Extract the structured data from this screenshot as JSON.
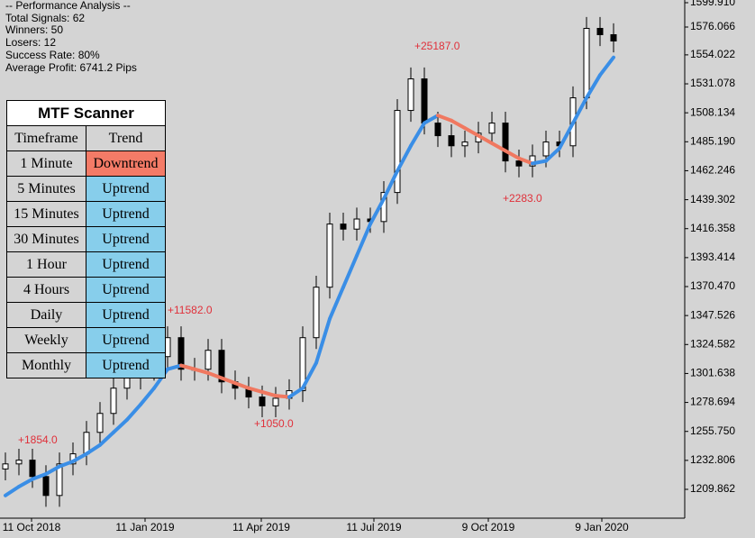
{
  "performance": {
    "lines": [
      "-- Performance Analysis --",
      "Total Signals: 62",
      "Winners: 50",
      "Losers: 12",
      "Success Rate: 80%",
      "Average Profit: 6741.2 Pips"
    ]
  },
  "scanner": {
    "title": "MTF Scanner",
    "header": [
      "Timeframe",
      "Trend"
    ],
    "rows": [
      [
        "1 Minute",
        "Downtrend"
      ],
      [
        "5 Minutes",
        "Uptrend"
      ],
      [
        "15 Minutes",
        "Uptrend"
      ],
      [
        "30 Minutes",
        "Uptrend"
      ],
      [
        "1 Hour",
        "Uptrend"
      ],
      [
        "4 Hours",
        "Uptrend"
      ],
      [
        "Daily",
        "Uptrend"
      ],
      [
        "Weekly",
        "Uptrend"
      ],
      [
        "Monthly",
        "Uptrend"
      ]
    ],
    "trend_colors": {
      "Downtrend": "#f47b67",
      "Uptrend": "#87ceeb"
    }
  },
  "price_axis": [
    "1599.910",
    "1576.066",
    "1554.022",
    "1531.078",
    "1508.134",
    "1485.190",
    "1462.246",
    "1439.302",
    "1416.358",
    "1393.414",
    "1370.470",
    "1347.526",
    "1324.582",
    "1301.638",
    "1278.694",
    "1255.750",
    "1232.806",
    "1209.862"
  ],
  "date_axis": [
    "11 Oct 2018",
    "11 Jan 2019",
    "11 Apr 2019",
    "11 Jul 2019",
    "9 Oct 2019",
    "9 Jan 2020"
  ],
  "annotations": [
    "+1854.0",
    "+11582.0",
    "+1050.0",
    "+25187.0",
    "+2283.0"
  ],
  "price_series": {
    "values": [
      1230,
      1233,
      1220,
      1205,
      1230,
      1238,
      1255,
      1270,
      1290,
      1298,
      1305,
      1315,
      1330,
      1305,
      1305,
      1320,
      1295,
      1290,
      1283,
      1276,
      1282,
      1288,
      1330,
      1370,
      1420,
      1416,
      1424,
      1422,
      1445,
      1510,
      1535,
      1500,
      1490,
      1482,
      1485,
      1492,
      1500,
      1470,
      1466,
      1474,
      1485,
      1482,
      1520,
      1575,
      1570,
      1565
    ]
  },
  "ma": {
    "values": [
      1205,
      1212,
      1218,
      1222,
      1228,
      1232,
      1238,
      1245,
      1255,
      1265,
      1277,
      1290,
      1305,
      1308,
      1305,
      1302,
      1298,
      1294,
      1290,
      1287,
      1284,
      1283,
      1290,
      1310,
      1345,
      1370,
      1395,
      1420,
      1440,
      1462,
      1482,
      1500,
      1506,
      1502,
      1496,
      1490,
      1484,
      1478,
      1472,
      1468,
      1470,
      1480,
      1500,
      1520,
      1538,
      1552
    ],
    "up_color": "#3a8ee6",
    "down_color": "#f07860"
  }
}
